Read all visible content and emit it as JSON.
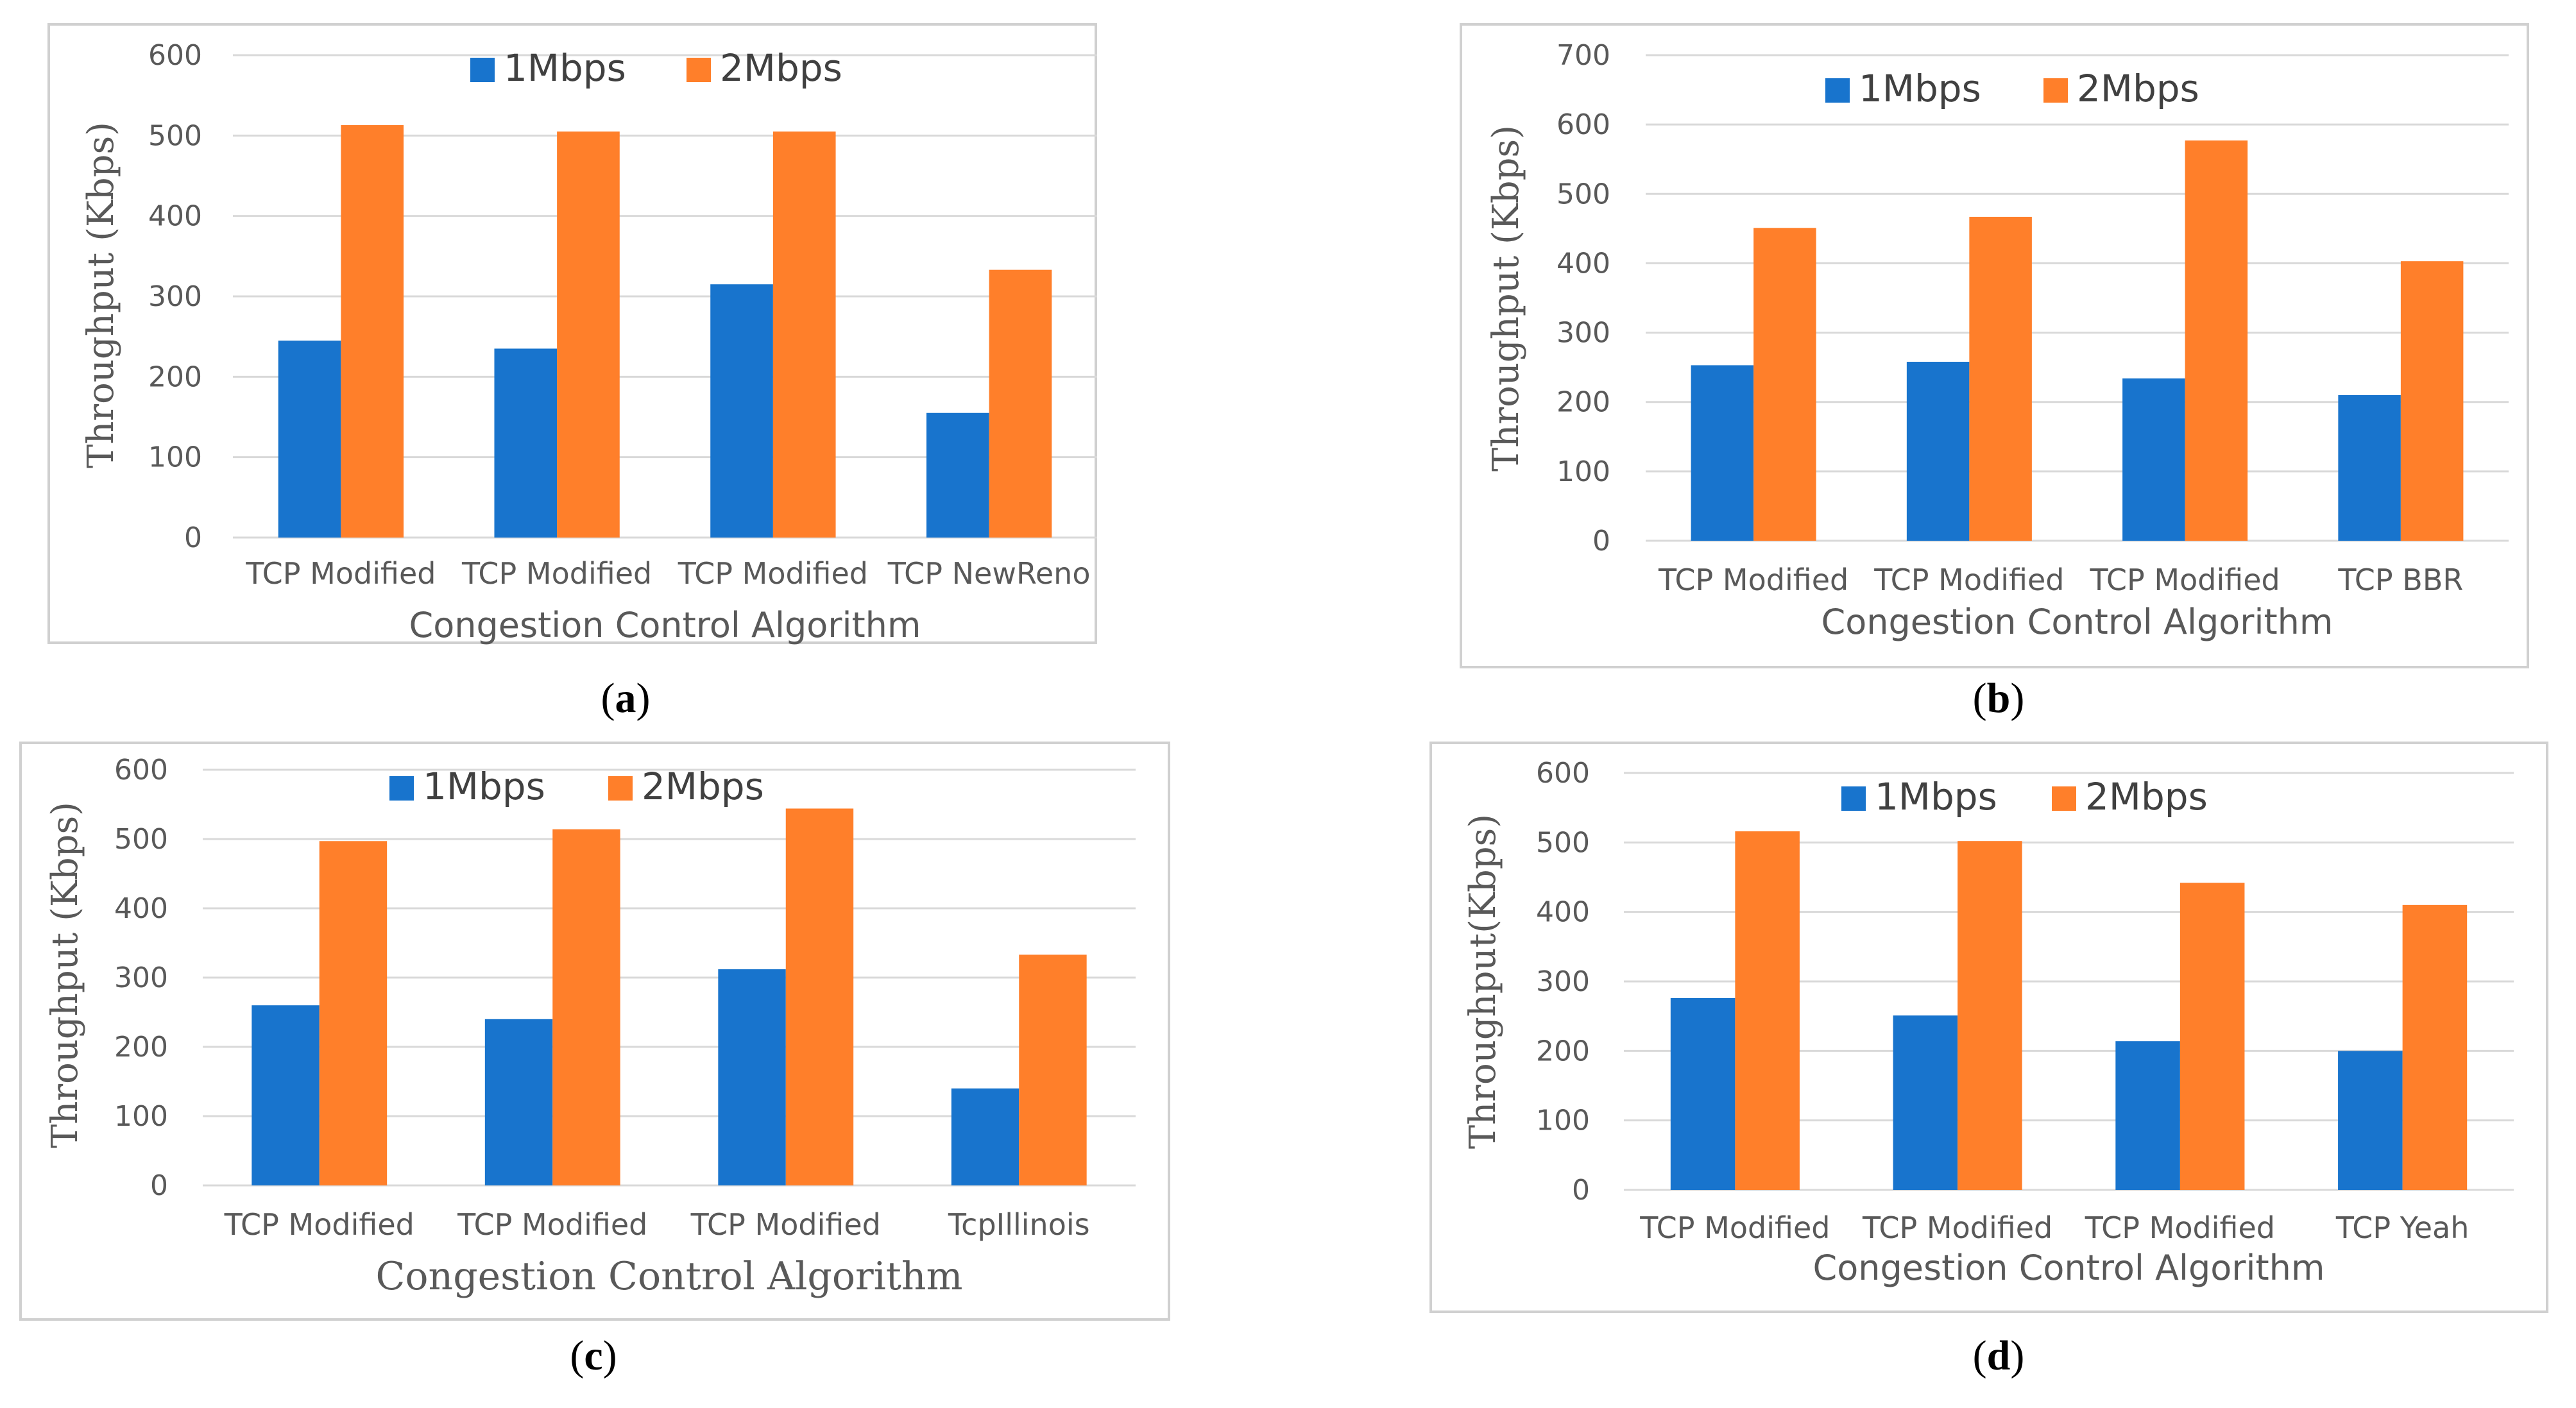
{
  "colors": {
    "1Mbps": "#1874CD",
    "2Mbps": "#FF7F2A",
    "grid": "#D9D9D9",
    "frame": "#D0D0D0"
  },
  "panel_labels": [
    "a",
    "b",
    "c",
    "d"
  ],
  "chart_data": [
    {
      "type": "bar",
      "categories": [
        "TCP Modified",
        "TCP Modified",
        "TCP Modified",
        "TCP NewReno"
      ],
      "series": [
        {
          "name": "1Mbps",
          "values": [
            245,
            235,
            315,
            155
          ]
        },
        {
          "name": "2Mbps",
          "values": [
            513,
            505,
            505,
            333
          ]
        }
      ],
      "xlabel": "Congestion Control Algorithm",
      "ylabel": "Throughput  (Kbps)",
      "ylim": [
        0,
        600
      ],
      "yticks": [
        0,
        100,
        200,
        300,
        400,
        500,
        600
      ],
      "grid": true,
      "legend": "top"
    },
    {
      "type": "bar",
      "categories": [
        "TCP Modified",
        "TCP Modified",
        "TCP Modified",
        "TCP BBR"
      ],
      "series": [
        {
          "name": "1Mbps",
          "values": [
            253,
            258,
            234,
            210
          ]
        },
        {
          "name": "2Mbps",
          "values": [
            451,
            467,
            577,
            403
          ]
        }
      ],
      "xlabel": "Congestion Control Algorithm",
      "ylabel": "Throughput  (Kbps)",
      "ylim": [
        0,
        700
      ],
      "yticks": [
        0,
        100,
        200,
        300,
        400,
        500,
        600,
        700
      ],
      "grid": true,
      "legend": "top"
    },
    {
      "type": "bar",
      "categories": [
        "TCP Modified",
        "TCP Modified",
        "TCP Modified",
        "TcpIllinois"
      ],
      "series": [
        {
          "name": "1Mbps",
          "values": [
            260,
            240,
            312,
            140
          ]
        },
        {
          "name": "2Mbps",
          "values": [
            497,
            514,
            544,
            333
          ]
        }
      ],
      "xlabel": "Congestion Control Algorithm",
      "ylabel": "Throughput (Kbps)",
      "ylim": [
        0,
        600
      ],
      "yticks": [
        0,
        100,
        200,
        300,
        400,
        500,
        600
      ],
      "grid": true,
      "legend": "top"
    },
    {
      "type": "bar",
      "categories": [
        "TCP Modified",
        "TCP Modified",
        "TCP Modified",
        "TCP Yeah"
      ],
      "series": [
        {
          "name": "1Mbps",
          "values": [
            276,
            251,
            214,
            200
          ]
        },
        {
          "name": "2Mbps",
          "values": [
            516,
            502,
            442,
            410
          ]
        }
      ],
      "xlabel": "Congestion Control Algorithm",
      "ylabel": "Throughput(Kbps)",
      "ylim": [
        0,
        600
      ],
      "yticks": [
        0,
        100,
        200,
        300,
        400,
        500,
        600
      ],
      "grid": true,
      "legend": "top"
    }
  ]
}
